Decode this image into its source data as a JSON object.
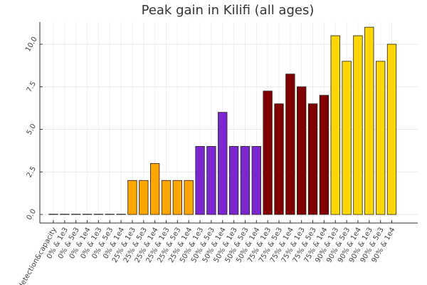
{
  "chart_data": {
    "type": "bar",
    "title": "Peak gain in Kilifi (all ages)",
    "xlabel": "",
    "ylabel": "",
    "ylim": [
      -0.5,
      11.3
    ],
    "grid": true,
    "legend": "none",
    "yticks": [
      0.0,
      2.5,
      5.0,
      7.5,
      10.0
    ],
    "ytick_labels": [
      "0.0",
      "2.5",
      "5.0",
      "7.5",
      "10.0"
    ],
    "categories": [
      "detection&capacity",
      "0% & 1e3",
      "0% & 5e3",
      "0% & 1e4",
      "0% & 1e3",
      "0% & 5e3",
      "0% & 1e4",
      "25% & 1e3",
      "25% & 5e3",
      "25% & 1e4",
      "25% & 1e3",
      "25% & 5e3",
      "25% & 1e4",
      "50% & 1e3",
      "50% & 5e3",
      "50% & 1e4",
      "50% & 1e3",
      "50% & 5e3",
      "50% & 1e4",
      "75% & 1e3",
      "75% & 5e3",
      "75% & 1e4",
      "75% & 1e3",
      "75% & 5e3",
      "75% & 1e4",
      "90% & 1e3",
      "90% & 5e3",
      "90% & 1e4",
      "90% & 1e3",
      "90% & 5e3",
      "90% & 1e4"
    ],
    "values": [
      0,
      0,
      0,
      0,
      0,
      0,
      0,
      2,
      2,
      3,
      2,
      2,
      2,
      4,
      4,
      6,
      4,
      4,
      4,
      7.25,
      6.5,
      8.25,
      7.5,
      6.5,
      7,
      10.5,
      9,
      10.5,
      11,
      9,
      10
    ],
    "bar_colors": [
      "#ffffff",
      "#ffffff",
      "#ffffff",
      "#ffffff",
      "#ffffff",
      "#ffffff",
      "#ffffff",
      "#ffa500",
      "#ffa500",
      "#ffa500",
      "#ffa500",
      "#ffa500",
      "#ffa500",
      "#7d26cd",
      "#7d26cd",
      "#7d26cd",
      "#7d26cd",
      "#7d26cd",
      "#7d26cd",
      "#800000",
      "#800000",
      "#800000",
      "#800000",
      "#800000",
      "#800000",
      "#ffd700",
      "#ffd700",
      "#ffd700",
      "#ffd700",
      "#ffd700",
      "#ffd700"
    ]
  }
}
